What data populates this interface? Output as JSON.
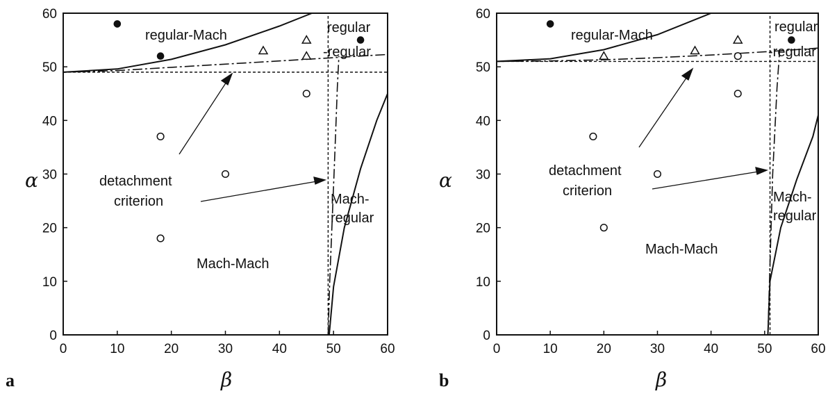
{
  "chart_data": [
    {
      "panel": "a",
      "type": "scatter",
      "xlabel": "β",
      "ylabel": "α",
      "xlim": [
        0,
        60
      ],
      "ylim": [
        0,
        60
      ],
      "xticks": [
        "0",
        "10",
        "20",
        "30",
        "40",
        "50",
        "60"
      ],
      "yticks": [
        "0",
        "10",
        "20",
        "30",
        "40",
        "50",
        "60"
      ],
      "series": [
        {
          "marker": "filled-circle",
          "points": [
            [
              10,
              58
            ],
            [
              18,
              52
            ],
            [
              55,
              55
            ]
          ]
        },
        {
          "marker": "triangle",
          "points": [
            [
              37,
              53
            ],
            [
              45,
              55
            ],
            [
              45,
              52
            ]
          ]
        },
        {
          "marker": "open-circle",
          "points": [
            [
              18,
              37
            ],
            [
              30,
              30
            ],
            [
              18,
              18
            ],
            [
              45,
              45
            ]
          ]
        }
      ],
      "curves": {
        "detachment_alpha": 49,
        "detachment_beta": 49,
        "upper": [
          [
            0,
            49
          ],
          [
            10,
            49.6
          ],
          [
            20,
            51.4
          ],
          [
            30,
            54.1
          ],
          [
            40,
            57.6
          ],
          [
            46,
            60
          ]
        ],
        "lower_dashdot": [
          [
            0,
            49
          ],
          [
            10,
            49.3
          ],
          [
            20,
            49.9
          ],
          [
            30,
            50.5
          ],
          [
            40,
            51.1
          ],
          [
            50,
            51.7
          ],
          [
            60,
            52.3
          ]
        ],
        "right_solid": [
          [
            49.2,
            0
          ],
          [
            50,
            9
          ],
          [
            52,
            20
          ],
          [
            55,
            31
          ],
          [
            58,
            40
          ],
          [
            60,
            45
          ]
        ],
        "right_dashdot": [
          [
            49,
            0
          ],
          [
            49.3,
            10
          ],
          [
            49.7,
            20
          ],
          [
            50.1,
            30
          ],
          [
            50.4,
            38
          ],
          [
            50.7,
            46
          ],
          [
            51,
            52
          ]
        ]
      },
      "labels": {
        "regular_mach": "regular-Mach",
        "regular_regular_1": "regular",
        "regular_regular_2": "-regular",
        "detachment_1": "detachment",
        "detachment_2": "criterion",
        "mach_regular_1": "Mach-",
        "mach_regular_2": "regular",
        "mach_mach": "Mach-Mach"
      }
    },
    {
      "panel": "b",
      "type": "scatter",
      "xlabel": "β",
      "ylabel": "α",
      "xlim": [
        0,
        60
      ],
      "ylim": [
        0,
        60
      ],
      "xticks": [
        "0",
        "10",
        "20",
        "30",
        "40",
        "50",
        "60"
      ],
      "yticks": [
        "0",
        "10",
        "20",
        "30",
        "40",
        "50",
        "60"
      ],
      "series": [
        {
          "marker": "filled-circle",
          "points": [
            [
              10,
              58
            ],
            [
              55,
              55
            ]
          ]
        },
        {
          "marker": "triangle",
          "points": [
            [
              20,
              52
            ],
            [
              37,
              53
            ],
            [
              45,
              55
            ]
          ]
        },
        {
          "marker": "open-circle",
          "points": [
            [
              18,
              37
            ],
            [
              30,
              30
            ],
            [
              20,
              20
            ],
            [
              45,
              45
            ],
            [
              45,
              52
            ]
          ]
        }
      ],
      "curves": {
        "detachment_alpha": 51,
        "detachment_beta": 51,
        "upper": [
          [
            0,
            51
          ],
          [
            10,
            51.5
          ],
          [
            20,
            53.2
          ],
          [
            30,
            56
          ],
          [
            38,
            59.2
          ],
          [
            40,
            60
          ]
        ],
        "lower_dashdot": [
          [
            0,
            51
          ],
          [
            10,
            51.1
          ],
          [
            20,
            51.3
          ],
          [
            30,
            51.7
          ],
          [
            40,
            52.2
          ],
          [
            50,
            52.8
          ],
          [
            60,
            53.5
          ]
        ],
        "right_solid": [
          [
            50.6,
            0
          ],
          [
            51,
            10
          ],
          [
            53,
            20
          ],
          [
            56,
            29
          ],
          [
            59,
            37
          ],
          [
            60,
            41
          ]
        ],
        "right_dashdot": [
          [
            50.6,
            0
          ],
          [
            50.9,
            10
          ],
          [
            51.2,
            20
          ],
          [
            51.5,
            30
          ],
          [
            51.9,
            38
          ],
          [
            52.3,
            46
          ],
          [
            52.8,
            53
          ]
        ]
      },
      "labels": {
        "regular_mach": "regular-Mach",
        "regular_regular_1": "regular",
        "regular_regular_2": "-regular",
        "detachment_1": "detachment",
        "detachment_2": "criterion",
        "mach_regular_1": "Mach-",
        "mach_regular_2": "regular",
        "mach_mach": "Mach-Mach"
      }
    }
  ]
}
